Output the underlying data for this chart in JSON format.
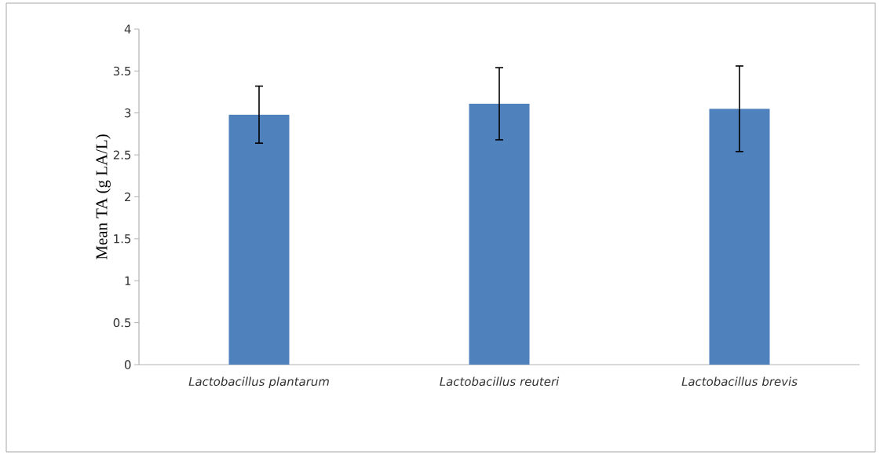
{
  "chart_data": {
    "type": "bar",
    "ylabel": "Mean TA (g LA/L)",
    "categories": [
      "*Lactobacillus plantarum*",
      "*Lactobacillus reuteri*",
      "*Lactobacillus brevis*"
    ],
    "values": [
      2.98,
      3.11,
      3.05
    ],
    "errors": [
      0.34,
      0.43,
      0.51
    ],
    "color": "#4f81bd",
    "ylim": [
      0,
      4
    ],
    "yticks": [
      0,
      0.5,
      1,
      1.5,
      2,
      2.5,
      3,
      3.5,
      4
    ]
  }
}
